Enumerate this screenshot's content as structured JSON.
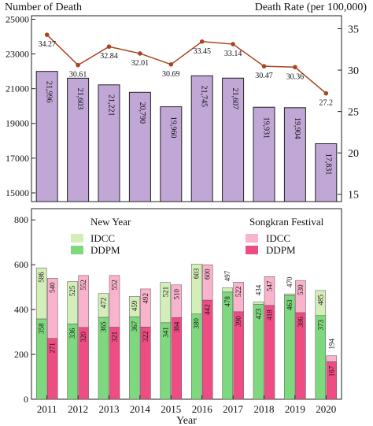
{
  "chart_data": [
    {
      "type": "bar+line",
      "years": [
        "2011",
        "2012",
        "2013",
        "2014",
        "2015",
        "2016",
        "2017",
        "2018",
        "2019",
        "2020"
      ],
      "deaths": [
        21996,
        21603,
        21221,
        20790,
        19960,
        21745,
        21607,
        19931,
        19904,
        17831
      ],
      "death_labels": [
        "21,996",
        "21,603",
        "21,221",
        "20,790",
        "19,960",
        "21,745",
        "21,607",
        "19,931",
        "19,904",
        "17,831"
      ],
      "death_rate": [
        34.27,
        30.61,
        32.84,
        32.01,
        30.69,
        33.45,
        33.14,
        30.47,
        30.36,
        27.2
      ],
      "death_rate_labels": [
        "34.27",
        "30.61",
        "32.84",
        "32.01",
        "30.69",
        "33.45",
        "33.14",
        "30.47",
        "30.36",
        "27.2"
      ],
      "ylabel_left": "Number of Death",
      "ylabel_right": "Death Rate (per 100,000)",
      "ylim_left": [
        14500,
        25200
      ],
      "ylim_right": [
        14.12,
        36.57
      ],
      "yticks_left": [
        15000,
        17000,
        19000,
        21000,
        23000,
        25000
      ],
      "yticks_left_labels": [
        "15000",
        "17000",
        "19000",
        "21000",
        "23000",
        "25000"
      ],
      "yticks_right": [
        15,
        20,
        25,
        30,
        35
      ],
      "yticks_right_labels": [
        "15",
        "20",
        "25",
        "30",
        "35"
      ],
      "colors": {
        "bar": "#c1a7d6",
        "bar_edge": "#222222",
        "line": "#a8451e"
      }
    },
    {
      "type": "stacked-bar",
      "years": [
        "2011",
        "2012",
        "2013",
        "2014",
        "2015",
        "2016",
        "2017",
        "2018",
        "2019",
        "2020"
      ],
      "x_ticks": [
        "2011",
        "2012",
        "2013",
        "2014",
        "2015",
        "2016",
        "2017",
        "2018",
        "2019",
        "2020"
      ],
      "xlabel": "Year",
      "ylim": [
        0,
        850
      ],
      "yticks": [
        0,
        200,
        400,
        600,
        800
      ],
      "yticks_labels": [
        "0",
        "200",
        "400",
        "600",
        "800"
      ],
      "groups": [
        {
          "name": "New Year",
          "ddpm": [
            358,
            336,
            365,
            367,
            341,
            380,
            478,
            423,
            463,
            373
          ],
          "idcc": [
            586,
            525,
            472,
            459,
            521,
            603,
            497,
            434,
            470,
            485
          ],
          "colors": {
            "ddpm": "#7ed87e",
            "idcc": "#d3eeb9"
          }
        },
        {
          "name": "Songkran Festival",
          "ddpm": [
            271,
            320,
            321,
            322,
            364,
            442,
            390,
            418,
            386,
            167
          ],
          "idcc": [
            540,
            552,
            552,
            492,
            510,
            600,
            522,
            547,
            530,
            194
          ],
          "colors": {
            "ddpm": "#ee4d84",
            "idcc": "#f9b3cd"
          }
        }
      ],
      "legend": {
        "new_year_title": "New Year",
        "songkran_title": "Songkran Festival",
        "idcc_label": "IDCC",
        "ddpm_label": "DDPM"
      }
    }
  ]
}
